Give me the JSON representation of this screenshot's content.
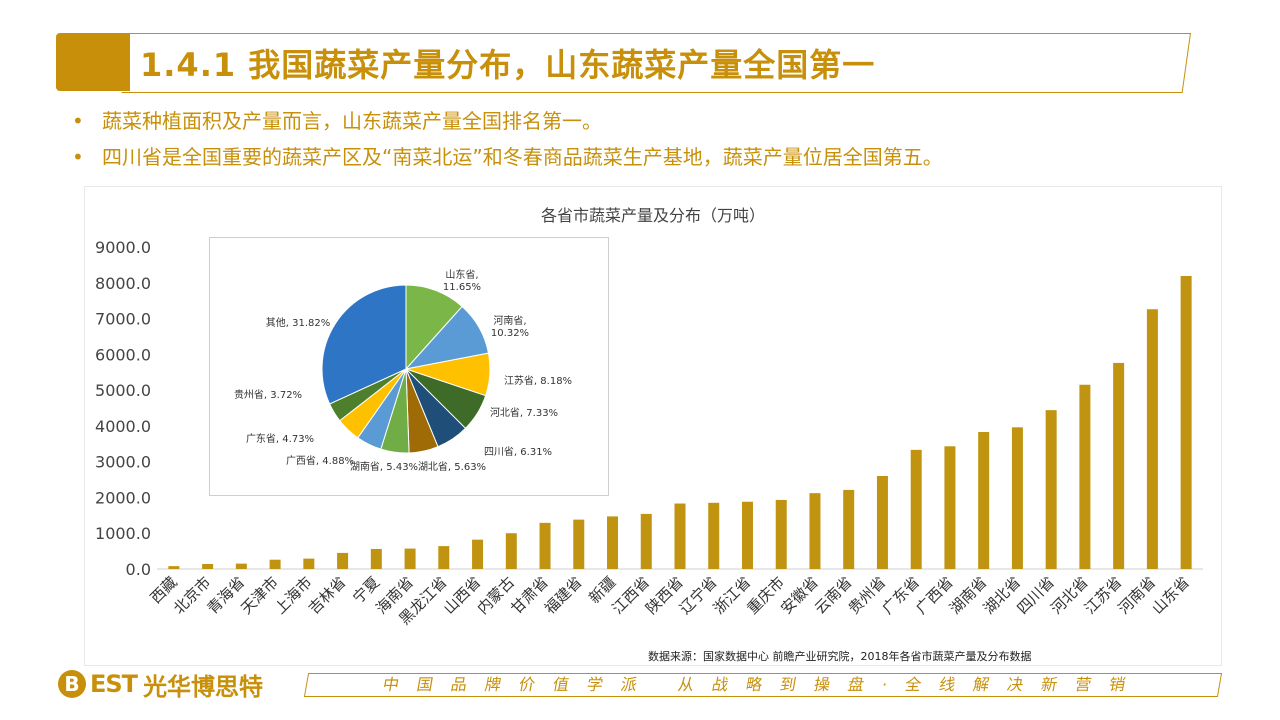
{
  "header": {
    "title": "1.4.1 我国蔬菜产量分布，山东蔬菜产量全国第一"
  },
  "bullets": [
    "蔬菜种植面积及产量而言，山东蔬菜产量全国排名第一。",
    "四川省是全国重要的蔬菜产区及“南菜北运”和冬春商品蔬菜生产基地，蔬菜产量位居全国第五。"
  ],
  "source": "数据来源：国家数据中心 前瞻产业研究院，2018年各省市蔬菜产量及分布数据",
  "footer": {
    "logo_letter": "B",
    "logo_est": "EST",
    "logo_cn": "光华博思特",
    "slogan": "中国品牌价值学派 从战略到操盘·全线解决新营销"
  },
  "colors": {
    "accent": "#C8900A",
    "bar": "#C09410"
  },
  "chart_data": [
    {
      "type": "bar",
      "title": "各省市蔬菜产量及分布（万吨）",
      "categories": [
        "西藏",
        "北京市",
        "青海省",
        "天津市",
        "上海市",
        "吉林省",
        "宁夏",
        "海南省",
        "黑龙江省",
        "山西省",
        "内蒙古",
        "甘肃省",
        "福建省",
        "新疆",
        "江西省",
        "陕西省",
        "辽宁省",
        "浙江省",
        "重庆市",
        "安徽省",
        "云南省",
        "贵州省",
        "广东省",
        "广西省",
        "湖南省",
        "湖北省",
        "四川省",
        "河北省",
        "江苏省",
        "河南省",
        "山东省"
      ],
      "values": [
        80,
        140,
        150,
        260,
        290,
        450,
        560,
        570,
        640,
        820,
        1000,
        1290,
        1380,
        1470,
        1540,
        1830,
        1850,
        1880,
        1930,
        2120,
        2210,
        2600,
        3330,
        3430,
        3830,
        3960,
        4440,
        5150,
        5760,
        7260,
        8190
      ],
      "ylim": [
        0,
        9000
      ],
      "yticks": [
        "0.0",
        "1000.0",
        "2000.0",
        "3000.0",
        "4000.0",
        "5000.0",
        "6000.0",
        "7000.0",
        "8000.0",
        "9000.0"
      ]
    },
    {
      "type": "pie",
      "slices": [
        {
          "label": "山东省, 11.65%",
          "value": 11.65,
          "color": "#7AB648"
        },
        {
          "label": "河南省, 10.32%",
          "value": 10.32,
          "color": "#5B9BD5"
        },
        {
          "label": "江苏省, 8.18%",
          "value": 8.18,
          "color": "#FFC000"
        },
        {
          "label": "河北省, 7.33%",
          "value": 7.33,
          "color": "#3E6B27"
        },
        {
          "label": "四川省, 6.31%",
          "value": 6.31,
          "color": "#1F4E79"
        },
        {
          "label": "湖北省, 5.63%",
          "value": 5.63,
          "color": "#9E6B06"
        },
        {
          "label": "湖南省, 5.43%",
          "value": 5.43,
          "color": "#70AD47"
        },
        {
          "label": "广西省, 4.88%",
          "value": 4.88,
          "color": "#5B9BD5"
        },
        {
          "label": "广东省, 4.73%",
          "value": 4.73,
          "color": "#FFC000"
        },
        {
          "label": "贵州省, 3.72%",
          "value": 3.72,
          "color": "#4E7F2D"
        },
        {
          "label": "其他, 31.82%",
          "value": 31.82,
          "color": "#2E75C6"
        }
      ]
    }
  ]
}
